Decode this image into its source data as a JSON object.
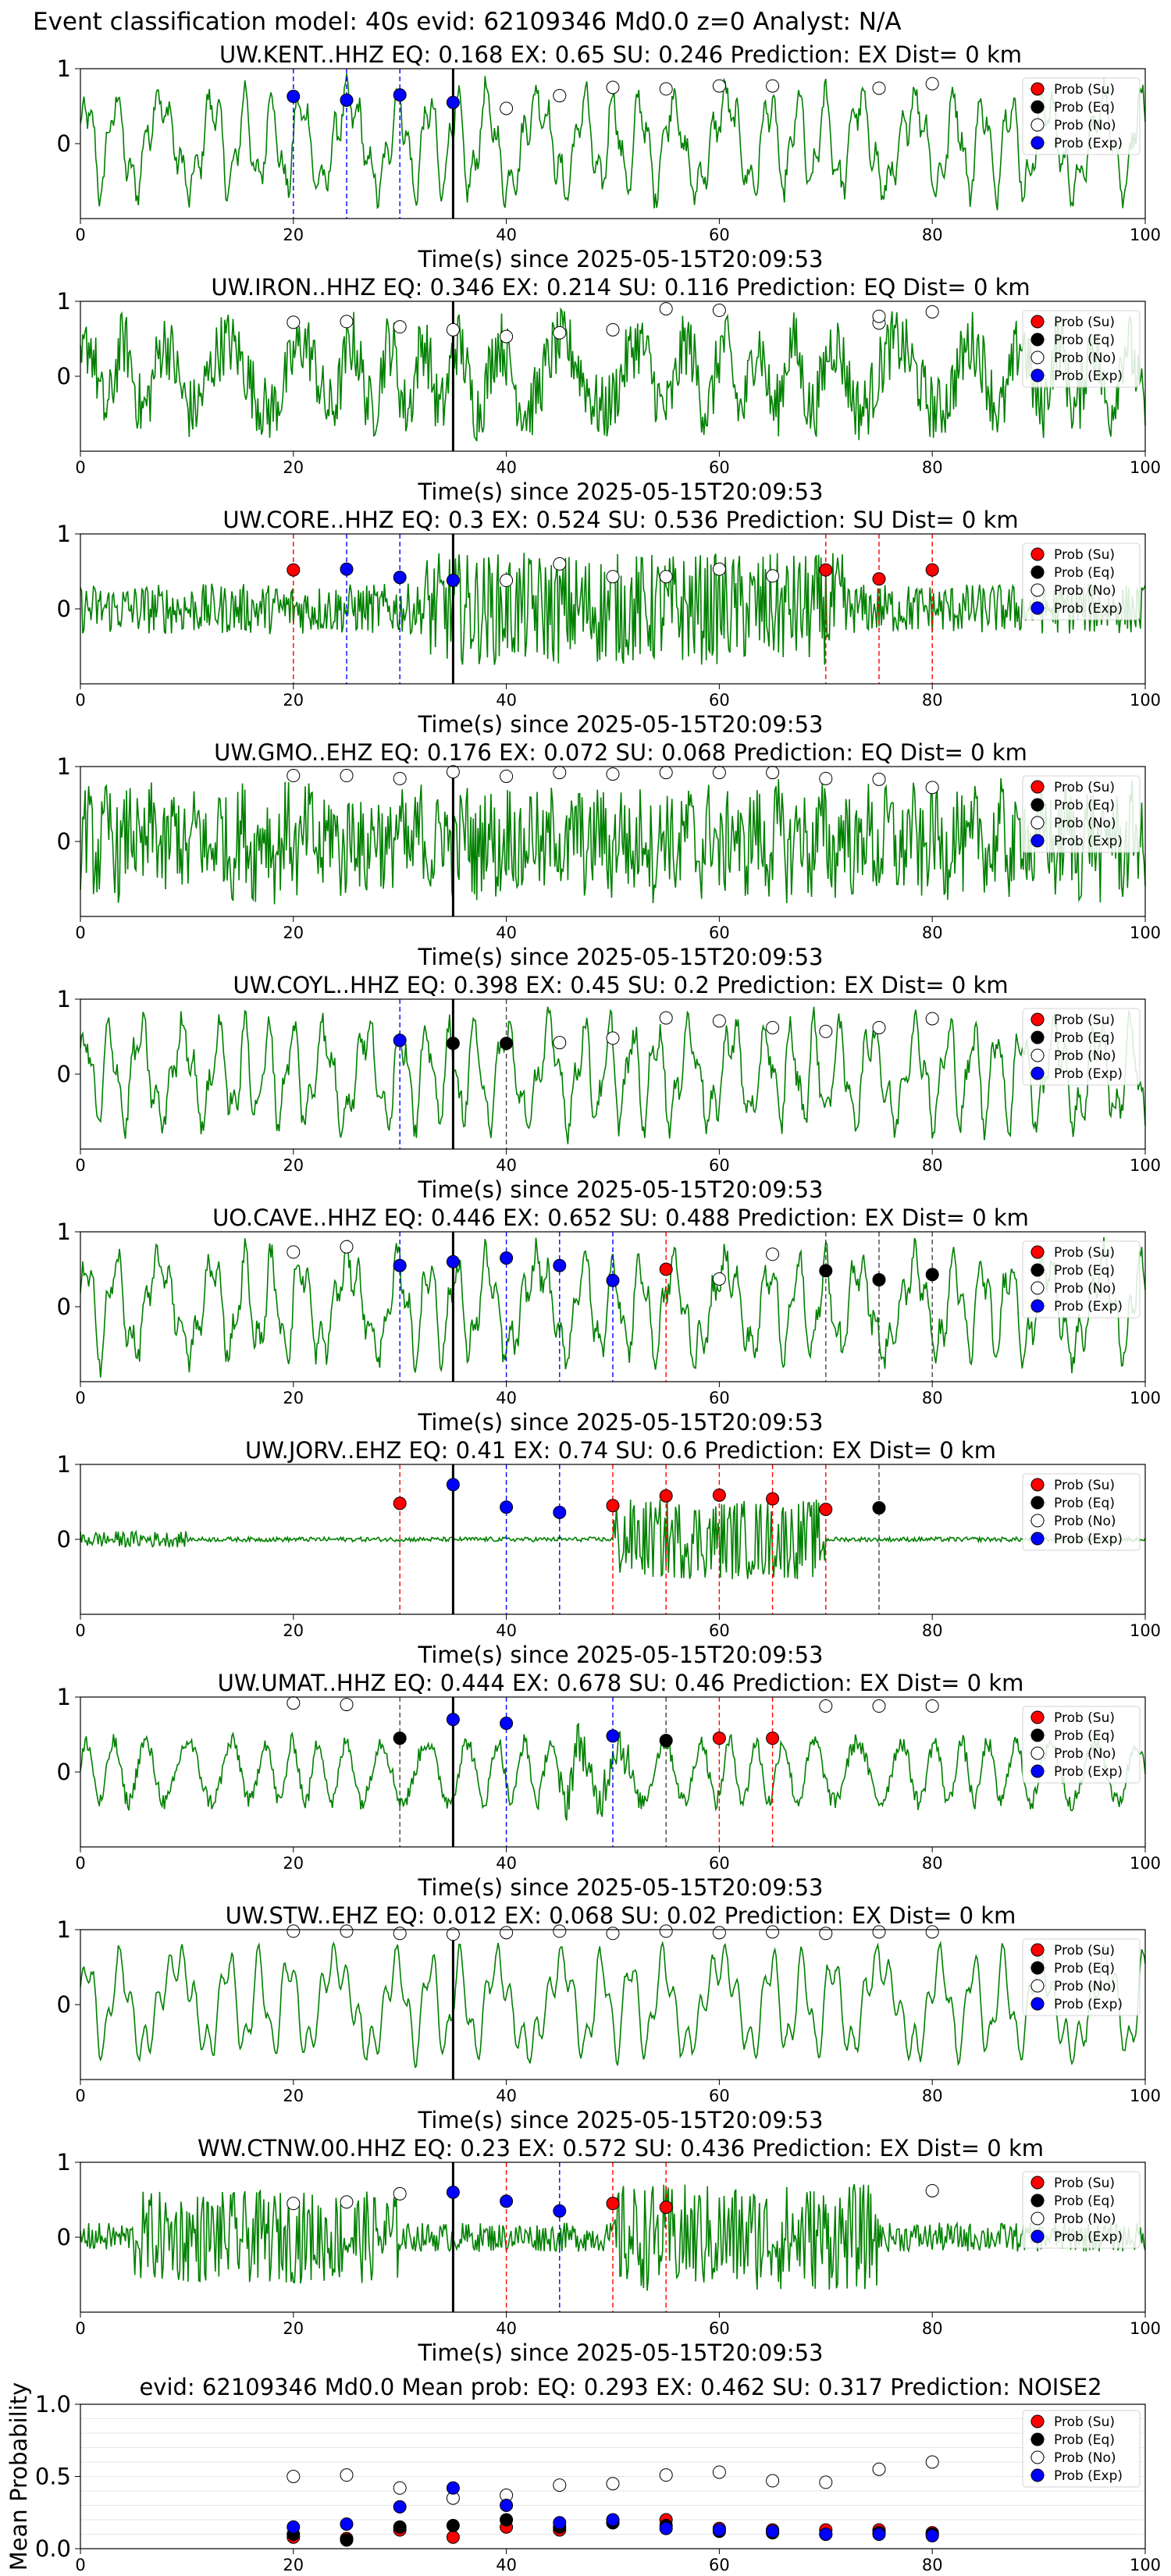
{
  "figure": {
    "suptitle": "Event classification model: 40s evid: 62109346 Md0.0 z=0 Analyst: N/A",
    "xlabel": "Time(s) since 2025-05-15T20:09:53",
    "legend": [
      "Prob (Su)",
      "Prob (Eq)",
      "Prob (No)",
      "Prob (Exp)"
    ],
    "colors": {
      "su": "#ff0000",
      "eq": "#000000",
      "no": "#ffffff",
      "exp": "#0000ff",
      "trace": "#008000",
      "pick": "#000000"
    }
  },
  "chart_data": [
    {
      "type": "line",
      "title": "UW.KENT..HHZ   EQ: 0.168  EX: 0.65  SU: 0.246   Prediction: EX    Dist= 0 km",
      "xlim": [
        0,
        100
      ],
      "ylim": [
        -1,
        1
      ],
      "yticks": [
        0,
        1
      ],
      "xticks": [
        0,
        20,
        40,
        60,
        80,
        100
      ],
      "grid": false,
      "legend_position": "top-right",
      "pick": 35,
      "trace_style": "long-period",
      "points": [
        [
          20,
          "exp",
          0.63
        ],
        [
          25,
          "exp",
          0.58
        ],
        [
          30,
          "exp",
          0.65
        ],
        [
          35,
          "exp",
          0.55
        ],
        [
          40,
          "no",
          0.47
        ],
        [
          45,
          "no",
          0.64
        ],
        [
          50,
          "no",
          0.75
        ],
        [
          55,
          "no",
          0.73
        ],
        [
          60,
          "no",
          0.77
        ],
        [
          65,
          "no",
          0.77
        ],
        [
          75,
          "no",
          0.74
        ],
        [
          80,
          "no",
          0.8
        ]
      ],
      "vlines": [
        [
          20,
          "exp"
        ],
        [
          25,
          "exp"
        ],
        [
          30,
          "exp"
        ]
      ]
    },
    {
      "type": "line",
      "title": "UW.IRON..HHZ   EQ: 0.346  EX: 0.214  SU: 0.116   Prediction: EQ    Dist= 0 km",
      "xlim": [
        0,
        100
      ],
      "ylim": [
        -1,
        1
      ],
      "yticks": [
        0,
        1
      ],
      "xticks": [
        0,
        20,
        40,
        60,
        80,
        100
      ],
      "grid": false,
      "legend_position": "top-right",
      "pick": 35,
      "trace_style": "noisy",
      "points": [
        [
          20,
          "no",
          0.72
        ],
        [
          25,
          "no",
          0.73
        ],
        [
          30,
          "no",
          0.66
        ],
        [
          35,
          "no",
          0.62
        ],
        [
          40,
          "no",
          0.53
        ],
        [
          45,
          "no",
          0.58
        ],
        [
          50,
          "no",
          0.62
        ],
        [
          55,
          "no",
          0.9
        ],
        [
          60,
          "no",
          0.88
        ],
        [
          75,
          "no",
          0.71
        ],
        [
          75,
          "no",
          0.8
        ],
        [
          80,
          "no",
          0.86
        ]
      ],
      "vlines": []
    },
    {
      "type": "line",
      "title": "UW.CORE..HHZ   EQ: 0.3  EX: 0.524  SU: 0.536   Prediction: SU    Dist= 0 km",
      "xlim": [
        0,
        100
      ],
      "ylim": [
        -1,
        1
      ],
      "yticks": [
        0,
        1
      ],
      "xticks": [
        0,
        20,
        40,
        60,
        80,
        100
      ],
      "grid": false,
      "legend_position": "top-right",
      "pick": 35,
      "trace_style": "burst",
      "points": [
        [
          20,
          "su",
          0.52
        ],
        [
          25,
          "exp",
          0.53
        ],
        [
          30,
          "exp",
          0.42
        ],
        [
          35,
          "exp",
          0.38
        ],
        [
          40,
          "no",
          0.38
        ],
        [
          45,
          "no",
          0.6
        ],
        [
          50,
          "no",
          0.43
        ],
        [
          55,
          "no",
          0.43
        ],
        [
          60,
          "no",
          0.53
        ],
        [
          65,
          "no",
          0.44
        ],
        [
          70,
          "su",
          0.52
        ],
        [
          75,
          "su",
          0.4
        ],
        [
          80,
          "su",
          0.52
        ]
      ],
      "vlines": [
        [
          20,
          "su"
        ],
        [
          25,
          "exp"
        ],
        [
          30,
          "exp"
        ],
        [
          70,
          "su"
        ],
        [
          75,
          "su"
        ],
        [
          80,
          "su"
        ]
      ]
    },
    {
      "type": "line",
      "title": "UW.GMO..EHZ   EQ: 0.176  EX: 0.072  SU: 0.068   Prediction: EQ    Dist= 0 km",
      "xlim": [
        0,
        100
      ],
      "ylim": [
        -1,
        1
      ],
      "yticks": [
        0,
        1
      ],
      "xticks": [
        0,
        20,
        40,
        60,
        80,
        100
      ],
      "grid": false,
      "legend_position": "top-right",
      "pick": 35,
      "trace_style": "dense",
      "points": [
        [
          20,
          "no",
          0.88
        ],
        [
          25,
          "no",
          0.88
        ],
        [
          30,
          "no",
          0.84
        ],
        [
          35,
          "no",
          0.93
        ],
        [
          40,
          "no",
          0.87
        ],
        [
          45,
          "no",
          0.92
        ],
        [
          50,
          "no",
          0.9
        ],
        [
          55,
          "no",
          0.92
        ],
        [
          60,
          "no",
          0.92
        ],
        [
          65,
          "no",
          0.92
        ],
        [
          70,
          "no",
          0.84
        ],
        [
          75,
          "no",
          0.83
        ],
        [
          80,
          "no",
          0.72
        ]
      ],
      "vlines": []
    },
    {
      "type": "line",
      "title": "UW.COYL..HHZ   EQ: 0.398  EX: 0.45  SU: 0.2   Prediction: EX    Dist= 0 km",
      "xlim": [
        0,
        100
      ],
      "ylim": [
        -1,
        1
      ],
      "yticks": [
        0,
        1
      ],
      "xticks": [
        0,
        20,
        40,
        60,
        80,
        100
      ],
      "grid": false,
      "legend_position": "top-right",
      "pick": 35,
      "trace_style": "medium",
      "points": [
        [
          30,
          "exp",
          0.45
        ],
        [
          35,
          "eq",
          0.41
        ],
        [
          40,
          "eq",
          0.41
        ],
        [
          45,
          "no",
          0.42
        ],
        [
          50,
          "no",
          0.48
        ],
        [
          55,
          "no",
          0.75
        ],
        [
          60,
          "no",
          0.71
        ],
        [
          65,
          "no",
          0.62
        ],
        [
          70,
          "no",
          0.57
        ],
        [
          75,
          "no",
          0.62
        ],
        [
          80,
          "no",
          0.74
        ]
      ],
      "vlines": [
        [
          30,
          "exp"
        ],
        [
          40,
          "eq"
        ]
      ]
    },
    {
      "type": "line",
      "title": "UO.CAVE..HHZ   EQ: 0.446  EX: 0.652  SU: 0.488   Prediction: EX    Dist= 0 km",
      "xlim": [
        0,
        100
      ],
      "ylim": [
        -1,
        1
      ],
      "yticks": [
        0,
        1
      ],
      "xticks": [
        0,
        20,
        40,
        60,
        80,
        100
      ],
      "grid": false,
      "legend_position": "top-right",
      "pick": 35,
      "trace_style": "long-period",
      "points": [
        [
          20,
          "no",
          0.73
        ],
        [
          25,
          "no",
          0.8
        ],
        [
          30,
          "exp",
          0.55
        ],
        [
          35,
          "exp",
          0.6
        ],
        [
          40,
          "exp",
          0.65
        ],
        [
          45,
          "exp",
          0.55
        ],
        [
          50,
          "exp",
          0.35
        ],
        [
          55,
          "su",
          0.5
        ],
        [
          60,
          "no",
          0.37
        ],
        [
          65,
          "no",
          0.7
        ],
        [
          70,
          "eq",
          0.48
        ],
        [
          75,
          "eq",
          0.36
        ],
        [
          80,
          "eq",
          0.43
        ]
      ],
      "vlines": [
        [
          30,
          "exp"
        ],
        [
          40,
          "exp"
        ],
        [
          45,
          "exp"
        ],
        [
          50,
          "exp"
        ],
        [
          55,
          "su"
        ],
        [
          70,
          "eq"
        ],
        [
          75,
          "eq"
        ],
        [
          80,
          "eq"
        ]
      ]
    },
    {
      "type": "line",
      "title": "UW.JORV..EHZ   EQ: 0.41  EX: 0.74  SU: 0.6   Prediction: EX    Dist= 0 km",
      "xlim": [
        0,
        100
      ],
      "ylim": [
        -1,
        1
      ],
      "yticks": [
        0,
        1
      ],
      "xticks": [
        0,
        20,
        40,
        60,
        80,
        100
      ],
      "grid": false,
      "legend_position": "top-right",
      "pick": 35,
      "trace_style": "quiet-burst",
      "points": [
        [
          30,
          "su",
          0.48
        ],
        [
          35,
          "exp",
          0.73
        ],
        [
          40,
          "exp",
          0.43
        ],
        [
          45,
          "exp",
          0.36
        ],
        [
          50,
          "su",
          0.45
        ],
        [
          55,
          "su",
          0.58
        ],
        [
          60,
          "su",
          0.59
        ],
        [
          65,
          "su",
          0.54
        ],
        [
          70,
          "su",
          0.4
        ],
        [
          75,
          "eq",
          0.42
        ]
      ],
      "vlines": [
        [
          30,
          "su"
        ],
        [
          40,
          "exp"
        ],
        [
          45,
          "exp"
        ],
        [
          50,
          "su"
        ],
        [
          55,
          "su"
        ],
        [
          60,
          "su"
        ],
        [
          65,
          "su"
        ],
        [
          70,
          "su"
        ],
        [
          75,
          "eq"
        ]
      ]
    },
    {
      "type": "line",
      "title": "UW.UMAT..HHZ   EQ: 0.444  EX: 0.678  SU: 0.46   Prediction: EX    Dist= 0 km",
      "xlim": [
        0,
        100
      ],
      "ylim": [
        -1,
        1
      ],
      "yticks": [
        0,
        1
      ],
      "xticks": [
        0,
        20,
        40,
        60,
        80,
        100
      ],
      "grid": false,
      "legend_position": "top-right",
      "pick": 35,
      "trace_style": "medium-burst",
      "points": [
        [
          20,
          "no",
          0.92
        ],
        [
          25,
          "no",
          0.9
        ],
        [
          30,
          "eq",
          0.45
        ],
        [
          35,
          "exp",
          0.7
        ],
        [
          40,
          "exp",
          0.65
        ],
        [
          50,
          "exp",
          0.48
        ],
        [
          55,
          "eq",
          0.42
        ],
        [
          60,
          "su",
          0.45
        ],
        [
          65,
          "su",
          0.45
        ],
        [
          70,
          "no",
          0.88
        ],
        [
          75,
          "no",
          0.88
        ],
        [
          80,
          "no",
          0.88
        ]
      ],
      "vlines": [
        [
          30,
          "eq"
        ],
        [
          40,
          "exp"
        ],
        [
          50,
          "exp"
        ],
        [
          55,
          "eq"
        ],
        [
          60,
          "su"
        ],
        [
          65,
          "su"
        ]
      ]
    },
    {
      "type": "line",
      "title": "UW.STW..EHZ   EQ: 0.012  EX: 0.068  SU: 0.02   Prediction: EX    Dist= 0 km",
      "xlim": [
        0,
        100
      ],
      "ylim": [
        -1,
        1
      ],
      "yticks": [
        0,
        1
      ],
      "xticks": [
        0,
        20,
        40,
        60,
        80,
        100
      ],
      "grid": false,
      "legend_position": "top-right",
      "pick": 35,
      "trace_style": "smooth",
      "points": [
        [
          20,
          "no",
          0.98
        ],
        [
          25,
          "no",
          0.98
        ],
        [
          30,
          "no",
          0.95
        ],
        [
          35,
          "no",
          0.94
        ],
        [
          40,
          "no",
          0.96
        ],
        [
          45,
          "no",
          0.98
        ],
        [
          50,
          "no",
          0.95
        ],
        [
          55,
          "no",
          0.98
        ],
        [
          60,
          "no",
          0.96
        ],
        [
          65,
          "no",
          0.97
        ],
        [
          70,
          "no",
          0.95
        ],
        [
          75,
          "no",
          0.97
        ],
        [
          80,
          "no",
          0.97
        ]
      ],
      "vlines": []
    },
    {
      "type": "line",
      "title": "WW.CTNW.00.HHZ   EQ: 0.23  EX: 0.572  SU: 0.436   Prediction: EX    Dist= 0 km",
      "xlim": [
        0,
        100
      ],
      "ylim": [
        -1,
        1
      ],
      "yticks": [
        0,
        1
      ],
      "xticks": [
        0,
        20,
        40,
        60,
        80,
        100
      ],
      "grid": false,
      "legend_position": "top-right",
      "pick": 35,
      "trace_style": "double-burst",
      "points": [
        [
          20,
          "no",
          0.45
        ],
        [
          25,
          "no",
          0.47
        ],
        [
          30,
          "no",
          0.58
        ],
        [
          35,
          "exp",
          0.6
        ],
        [
          40,
          "exp",
          0.48
        ],
        [
          45,
          "exp",
          0.35
        ],
        [
          50,
          "su",
          0.45
        ],
        [
          55,
          "su",
          0.4
        ],
        [
          80,
          "no",
          0.62
        ]
      ],
      "vlines": [
        [
          40,
          "su"
        ],
        [
          45,
          "exp"
        ],
        [
          50,
          "su"
        ],
        [
          55,
          "su"
        ]
      ]
    },
    {
      "type": "scatter",
      "title": "evid: 62109346  Md0.0   Mean prob:   EQ: 0.293  EX: 0.462  SU: 0.317   Prediction: NOISE2",
      "ylabel": "Mean Probability",
      "xlim": [
        0,
        100
      ],
      "ylim": [
        0,
        1
      ],
      "yticks": [
        0,
        0.5,
        1
      ],
      "xticks": [
        0,
        20,
        40,
        60,
        80,
        100
      ],
      "grid": true,
      "legend_position": "top-right",
      "series": [
        {
          "name": "Prob (Su)",
          "key": "su",
          "x": [
            20,
            25,
            30,
            35,
            40,
            45,
            50,
            55,
            60,
            65,
            70,
            75,
            80
          ],
          "values": [
            0.08,
            0.07,
            0.13,
            0.08,
            0.15,
            0.13,
            0.18,
            0.2,
            0.14,
            0.13,
            0.13,
            0.13,
            0.11
          ]
        },
        {
          "name": "Prob (Eq)",
          "key": "eq",
          "x": [
            20,
            25,
            30,
            35,
            40,
            45,
            50,
            55,
            60,
            65,
            70,
            75,
            80
          ],
          "values": [
            0.1,
            0.06,
            0.15,
            0.16,
            0.2,
            0.15,
            0.18,
            0.16,
            0.12,
            0.11,
            0.1,
            0.11,
            0.1
          ]
        },
        {
          "name": "Prob (No)",
          "key": "no",
          "x": [
            20,
            25,
            30,
            35,
            40,
            45,
            50,
            55,
            60,
            65,
            70,
            75,
            80
          ],
          "values": [
            0.5,
            0.51,
            0.42,
            0.35,
            0.37,
            0.44,
            0.45,
            0.51,
            0.53,
            0.47,
            0.46,
            0.55,
            0.6
          ]
        },
        {
          "name": "Prob (Exp)",
          "key": "exp",
          "x": [
            20,
            25,
            30,
            35,
            40,
            45,
            50,
            55,
            60,
            65,
            70,
            75,
            80
          ],
          "values": [
            0.15,
            0.17,
            0.29,
            0.42,
            0.3,
            0.18,
            0.2,
            0.14,
            0.13,
            0.12,
            0.1,
            0.1,
            0.09
          ]
        }
      ]
    }
  ]
}
